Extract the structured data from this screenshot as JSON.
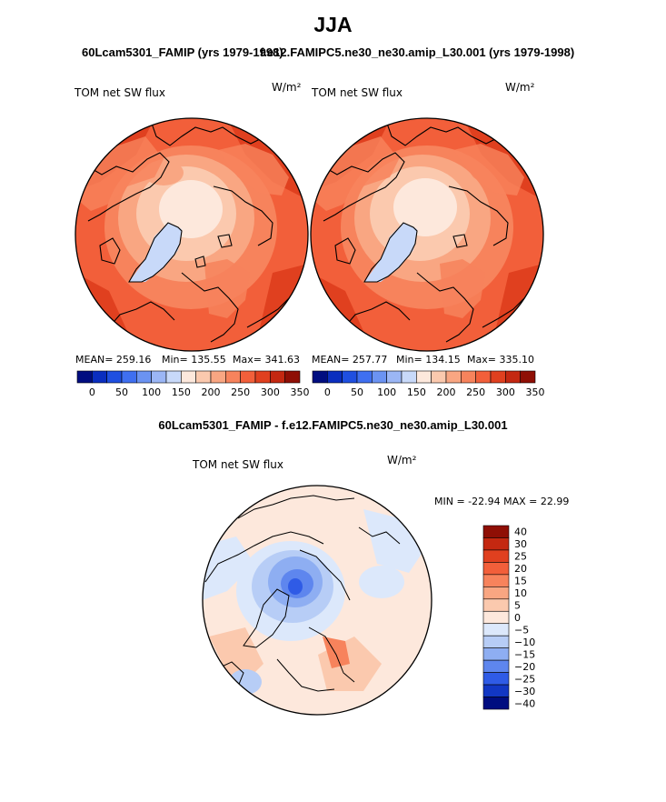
{
  "figure": {
    "title": "JJA",
    "panel_left_title": "60Lcam5301_FAMIP (yrs 1979-1998)",
    "panel_right_title": "f.e12.FAMIPC5.ne30_ne30.amip_L30.001 (yrs 1979-1998)",
    "diff_title": "60Lcam5301_FAMIP - f.e12.FAMIPC5.ne30_ne30.amip_L30.001"
  },
  "chart_data": [
    {
      "type": "heatmap",
      "projection": "north-polar-stereographic",
      "variable": "TOM net SW flux",
      "units": "W/m²",
      "stats": {
        "mean": "MEAN= 259.16",
        "min": "Min= 135.55",
        "max": "Max= 341.63"
      },
      "stats_values": {
        "mean": 259.16,
        "min": 135.55,
        "max": 341.63
      },
      "colorbar_ticks": [
        "0",
        "50",
        "100",
        "150",
        "200",
        "250",
        "300",
        "350"
      ],
      "levels": [
        0,
        25,
        50,
        75,
        100,
        125,
        150,
        175,
        200,
        225,
        250,
        275,
        300,
        325,
        350
      ]
    },
    {
      "type": "heatmap",
      "projection": "north-polar-stereographic",
      "variable": "TOM net SW flux",
      "units": "W/m²",
      "stats": {
        "mean": "MEAN= 257.77",
        "min": "Min= 134.15",
        "max": "Max= 335.10"
      },
      "stats_values": {
        "mean": 257.77,
        "min": 134.15,
        "max": 335.1
      },
      "colorbar_ticks": [
        "0",
        "50",
        "100",
        "150",
        "200",
        "250",
        "300",
        "350"
      ],
      "levels": [
        0,
        25,
        50,
        75,
        100,
        125,
        150,
        175,
        200,
        225,
        250,
        275,
        300,
        325,
        350
      ]
    },
    {
      "type": "heatmap",
      "projection": "north-polar-stereographic",
      "variable": "TOM net SW flux",
      "units": "W/m²",
      "minmax_label": "MIN = -22.94 MAX =  22.99",
      "stats_values": {
        "min": -22.94,
        "max": 22.99
      },
      "colorbar_ticks": [
        "40",
        "30",
        "25",
        "20",
        "15",
        "10",
        "5",
        "0",
        "−5",
        "−10",
        "−15",
        "−20",
        "−25",
        "−30",
        "−40"
      ],
      "levels": [
        -40,
        -30,
        -25,
        -20,
        -15,
        -10,
        -5,
        0,
        5,
        10,
        15,
        20,
        25,
        30,
        40
      ]
    }
  ],
  "colors": {
    "abs_scale": [
      "#000d80",
      "#0a2ebf",
      "#1f4fe0",
      "#3f6ff0",
      "#6b93f2",
      "#9bb6f5",
      "#c8d9f9",
      "#fde8dc",
      "#fbc9ae",
      "#f9a682",
      "#f7835c",
      "#f25f3a",
      "#e0401f",
      "#c42811",
      "#8f0f05"
    ],
    "diff_scale": [
      "#8f0f05",
      "#c42811",
      "#e0401f",
      "#f25f3a",
      "#f7835c",
      "#f9a682",
      "#fbc9ae",
      "#fde8dc",
      "#dce8fb",
      "#b7cdf6",
      "#8eaef2",
      "#5e86ee",
      "#2f5be6",
      "#1237c4",
      "#000d80"
    ]
  }
}
